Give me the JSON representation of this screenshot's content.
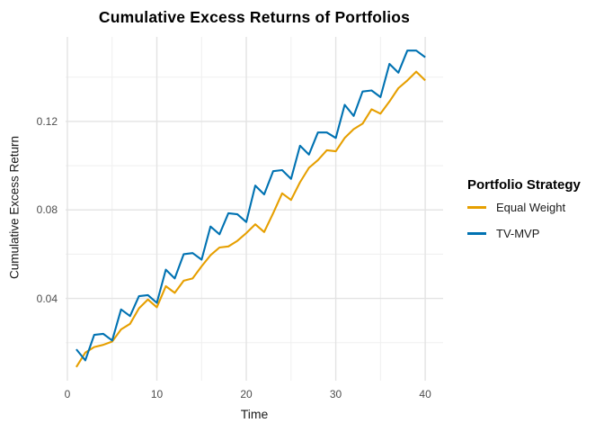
{
  "chart_data": {
    "type": "line",
    "title": "Cumulative Excess Returns of Portfolios",
    "xlabel": "Time",
    "ylabel": "Cumulative Excess Return",
    "xlim": [
      -0.2,
      42.0
    ],
    "ylim": [
      0.0028,
      0.1582
    ],
    "grid": {
      "visible": true,
      "major_color": "#e3e3e3",
      "minor_color": "#efefef",
      "background": "#ffffff"
    },
    "x_ticks": {
      "major": [
        0,
        10,
        20,
        30,
        40
      ],
      "minor": [
        5,
        15,
        25,
        35
      ],
      "labels": [
        "0",
        "10",
        "20",
        "30",
        "40"
      ]
    },
    "y_ticks": {
      "major": [
        0.04,
        0.08,
        0.12
      ],
      "minor": [
        0.02,
        0.06,
        0.1,
        0.14
      ],
      "labels": [
        "0.04",
        "0.08",
        "0.12"
      ]
    },
    "x": [
      1,
      2,
      3,
      4,
      5,
      6,
      7,
      8,
      9,
      10,
      11,
      12,
      13,
      14,
      15,
      16,
      17,
      18,
      19,
      20,
      21,
      22,
      23,
      24,
      25,
      26,
      27,
      28,
      29,
      30,
      31,
      32,
      33,
      34,
      35,
      36,
      37,
      38,
      39,
      40
    ],
    "series": [
      {
        "name": "Equal Weight",
        "color": "#E69F00",
        "values": [
          0.009,
          0.0155,
          0.018,
          0.019,
          0.0205,
          0.026,
          0.0285,
          0.0355,
          0.0395,
          0.036,
          0.0455,
          0.0425,
          0.048,
          0.049,
          0.0545,
          0.0595,
          0.063,
          0.0635,
          0.066,
          0.0695,
          0.0735,
          0.07,
          0.0785,
          0.0875,
          0.0845,
          0.0925,
          0.099,
          0.1025,
          0.107,
          0.1065,
          0.1125,
          0.1165,
          0.119,
          0.1255,
          0.1235,
          0.129,
          0.135,
          0.1385,
          0.1425,
          0.1385
        ]
      },
      {
        "name": "TV-MVP",
        "color": "#0072B2",
        "values": [
          0.017,
          0.012,
          0.0235,
          0.024,
          0.021,
          0.035,
          0.032,
          0.041,
          0.0415,
          0.038,
          0.053,
          0.049,
          0.06,
          0.0605,
          0.0575,
          0.0725,
          0.069,
          0.0785,
          0.078,
          0.0745,
          0.091,
          0.087,
          0.0975,
          0.098,
          0.094,
          0.109,
          0.105,
          0.115,
          0.115,
          0.1125,
          0.1275,
          0.1225,
          0.1335,
          0.134,
          0.131,
          0.146,
          0.142,
          0.152,
          0.152,
          0.149
        ]
      }
    ],
    "legend": {
      "title": "Portfolio Strategy",
      "position": "right"
    },
    "text_color_ticks": "#4d4d4d",
    "text_color_titles": "#1a1a1a"
  }
}
